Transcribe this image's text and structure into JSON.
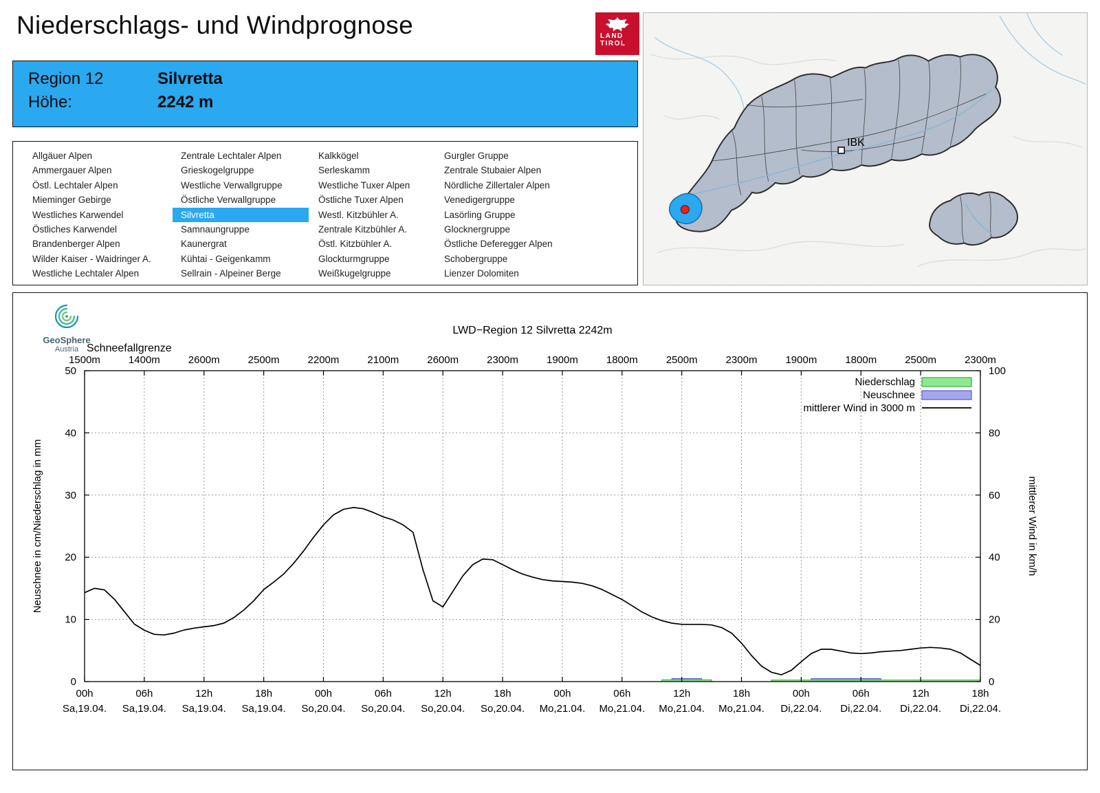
{
  "title": "Niederschlags- und Windprognose",
  "logo": {
    "line1": "LAND",
    "line2": "TIROL"
  },
  "map": {
    "ibk_label": "IBK"
  },
  "colors": {
    "accent_blue": "#2aa8f0",
    "tirol_red": "#c8102e"
  },
  "region_header": {
    "rows": [
      {
        "label": "Region 12",
        "value": "Silvretta"
      },
      {
        "label": "Höhe:",
        "value": "2242 m"
      }
    ]
  },
  "region_list": {
    "selected": "Silvretta",
    "columns": [
      [
        "Allgäuer Alpen",
        "Ammergauer Alpen",
        "Östl. Lechtaler Alpen",
        "Mieminger Gebirge",
        "Westliches Karwendel",
        "Östliches Karwendel",
        "Brandenberger Alpen",
        "Wilder Kaiser - Waidringer A.",
        "Westliche Lechtaler Alpen"
      ],
      [
        "Zentrale Lechtaler Alpen",
        "Grieskogelgruppe",
        "Westliche Verwallgruppe",
        "Östliche Verwallgruppe",
        "Silvretta",
        "Samnaungruppe",
        "Kaunergrat",
        "Kühtai - Geigenkamm",
        "Sellrain - Alpeiner Berge"
      ],
      [
        "Kalkkögel",
        "Serleskamm",
        "Westliche Tuxer Alpen",
        "Östliche Tuxer Alpen",
        "Westl. Kitzbühler A.",
        "Zentrale Kitzbühler A.",
        "Östl. Kitzbühler A.",
        "Glockturmgruppe",
        "Weißkugelgruppe"
      ],
      [
        "Gurgler Gruppe",
        "Zentrale Stubaier Alpen",
        "Nördliche Zillertaler Alpen",
        "Venedigergruppe",
        "Lasörling Gruppe",
        "Glocknergruppe",
        "Östliche Deferegger Alpen",
        "Schobergruppe",
        "Lienzer Dolomiten"
      ]
    ]
  },
  "brand": {
    "name": "GeoSphere",
    "sub": "Austria"
  },
  "chart_data": {
    "type": "line",
    "title": "LWD−Region 12 Silvretta 2242m",
    "snowline_label": "Schneefallgrenze",
    "snowline_m": [
      "1500m",
      "1400m",
      "2600m",
      "2500m",
      "2200m",
      "2100m",
      "2600m",
      "2300m",
      "1900m",
      "1800m",
      "2500m",
      "2300m",
      "1900m",
      "1800m",
      "2500m",
      "2300m"
    ],
    "ylabel_left": "Neuschnee in cm/Niederschlag in mm",
    "ylim_left": [
      0,
      50
    ],
    "ylabel_right": "mittlerer Wind in km/h",
    "ylim_right": [
      0,
      100
    ],
    "x_range_hours": [
      0,
      90
    ],
    "x_tick_step_hours": 6,
    "x_tick_hours": [
      "00h",
      "06h",
      "12h",
      "18h",
      "00h",
      "06h",
      "12h",
      "18h",
      "00h",
      "06h",
      "12h",
      "18h",
      "00h",
      "06h",
      "12h",
      "18h"
    ],
    "x_tick_dates": [
      "Sa,19.04.",
      "Sa,19.04.",
      "Sa,19.04.",
      "Sa,19.04.",
      "So,20.04.",
      "So,20.04.",
      "So,20.04.",
      "So,20.04.",
      "Mo,21.04.",
      "Mo,21.04.",
      "Mo,21.04.",
      "Mo,21.04.",
      "Di,22.04.",
      "Di,22.04.",
      "Di,22.04.",
      "Di,22.04."
    ],
    "legend": [
      {
        "label": "Niederschlag",
        "fill": "#8fe88f",
        "stroke": "#1ca01c"
      },
      {
        "label": "Neuschnee",
        "fill": "#a3a8f0",
        "stroke": "#4646c8"
      },
      {
        "label": "mittlerer Wind in 3000 m",
        "stroke": "#000000"
      }
    ],
    "wind_kmh_hourly": [
      28.6,
      30,
      29.5,
      26.5,
      22.5,
      18.5,
      16.5,
      15.2,
      15,
      15.6,
      16.6,
      17.2,
      17.6,
      18,
      18.8,
      20.6,
      23,
      26,
      29.6,
      32,
      34.6,
      38,
      42,
      46.4,
      50.4,
      53.6,
      55.4,
      56,
      55.6,
      54.4,
      53,
      52,
      50.4,
      48,
      36,
      26,
      24,
      29,
      34,
      37.6,
      39.4,
      39.2,
      37.6,
      36,
      34.6,
      33.6,
      32.8,
      32.4,
      32.2,
      32,
      31.6,
      30.8,
      29.6,
      28,
      26.4,
      24.4,
      22.4,
      20.8,
      19.6,
      18.8,
      18.4,
      18.4,
      18.4,
      18.2,
      17.4,
      15.6,
      12.4,
      8.4,
      5,
      3,
      2.2,
      3.6,
      6.4,
      9,
      10.4,
      10.4,
      9.8,
      9.2,
      9,
      9.2,
      9.6,
      9.8,
      10,
      10.4,
      10.8,
      11,
      10.8,
      10.4,
      9.2,
      7.2,
      5.2
    ],
    "niederschlag_mm_segments": [
      {
        "from": 58,
        "to": 63,
        "value": 0.3
      },
      {
        "from": 69,
        "to": 90,
        "value": 0.25
      }
    ],
    "neuschnee_cm_segments": [
      {
        "from": 59,
        "to": 62,
        "value": 0.5
      },
      {
        "from": 73,
        "to": 80,
        "value": 0.5
      }
    ]
  }
}
